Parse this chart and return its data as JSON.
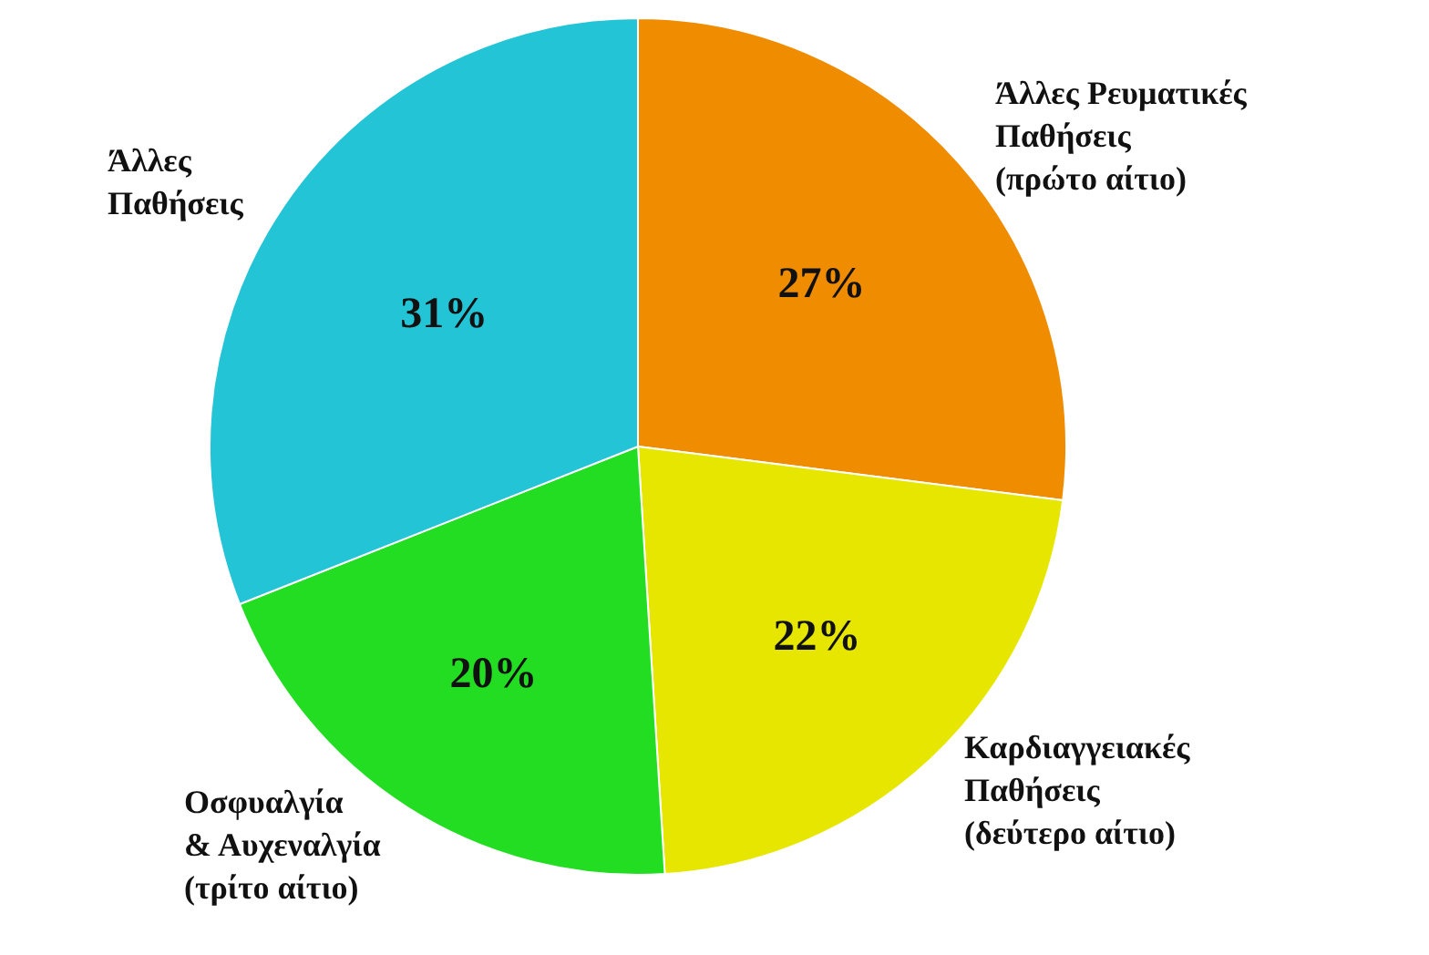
{
  "chart_data": {
    "type": "pie",
    "categories": [
      "Άλλες Ρευματικές\nΠαθήσεις\n(πρώτο αίτιο)",
      "Καρδιαγγειακές\nΠαθήσεις\n(δεύτερο αίτιο)",
      "Οσφυαλγία\n& Αυχεναλγία\n(τρίτο αίτιο)",
      "Άλλες\nΠαθήσεις"
    ],
    "values": [
      27,
      22,
      20,
      31
    ],
    "colors": [
      "#f08c00",
      "#e6e600",
      "#22dd22",
      "#22c4d6"
    ],
    "value_labels": [
      "27%",
      "22%",
      "20%",
      "31%"
    ],
    "legend": false
  }
}
